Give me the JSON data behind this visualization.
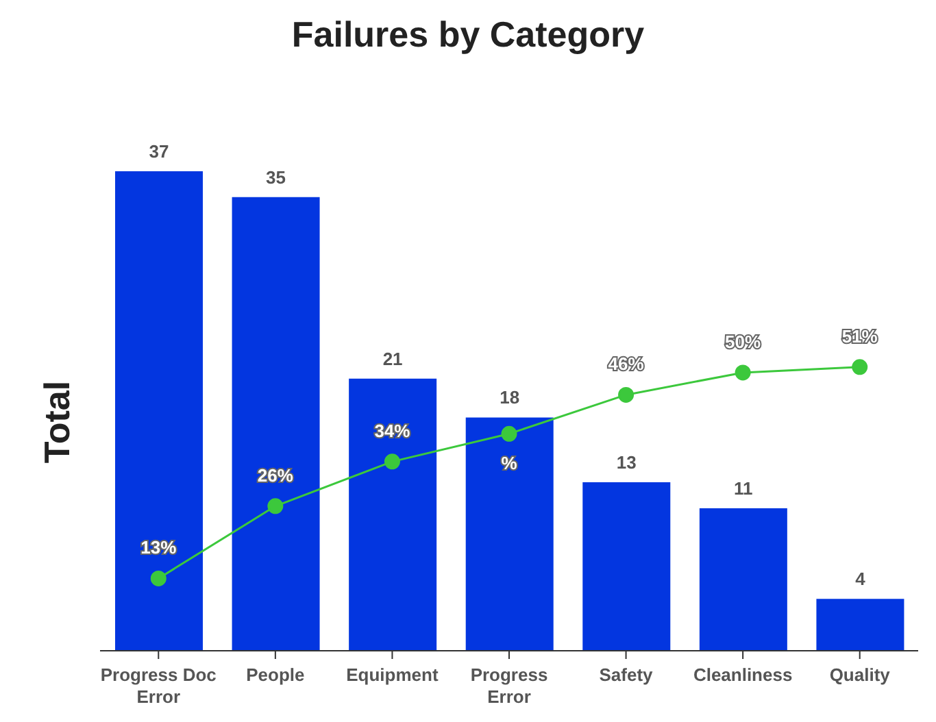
{
  "chart_data": {
    "type": "bar",
    "title": "Failures by Category",
    "ylabel": "Total",
    "categories": [
      "Progress Doc Error",
      "People",
      "Equipment",
      "Progress Error",
      "Safety",
      "Cleanliness",
      "Quality"
    ],
    "series": [
      {
        "color": "#0336e0",
        "values": [
          37,
          35,
          21,
          18,
          13,
          11,
          4
        ],
        "value_labels": [
          "37",
          "35",
          "21",
          "18",
          "13",
          "11",
          "4"
        ]
      },
      {
        "type": "line",
        "axis": "y2",
        "color": "#3cc83c",
        "values": [
          13,
          26,
          34,
          39,
          46,
          50,
          51
        ],
        "value_labels": [
          "13%",
          "26%",
          "34%",
          "%",
          "46%",
          "50%",
          "51%"
        ]
      }
    ],
    "marker": "circle",
    "line_style": "solid",
    "grid": false,
    "legend": false
  }
}
